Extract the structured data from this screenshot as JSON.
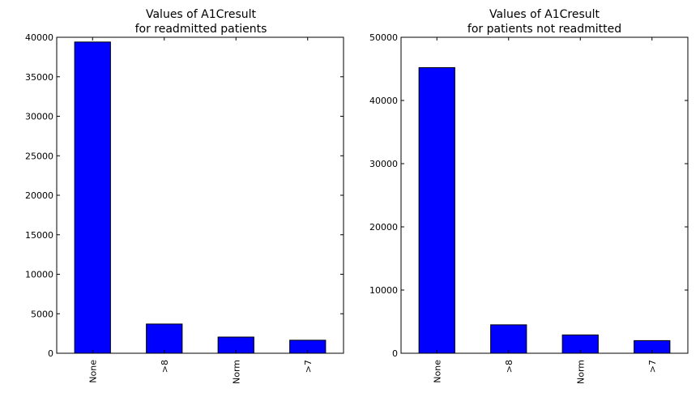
{
  "chart_data": [
    {
      "type": "bar",
      "title_lines": [
        "Values of A1Cresult",
        "for readmitted patients"
      ],
      "categories": [
        "None",
        ">8",
        "Norm",
        ">7"
      ],
      "values": [
        39400,
        3700,
        2050,
        1650
      ],
      "ylim": [
        0,
        40000
      ],
      "yticks": [
        0,
        5000,
        10000,
        15000,
        20000,
        25000,
        30000,
        35000,
        40000
      ],
      "bar_color": "#0000ff",
      "grid": false
    },
    {
      "type": "bar",
      "title_lines": [
        "Values of A1Cresult",
        "for patients not readmitted"
      ],
      "categories": [
        "None",
        ">8",
        "Norm",
        ">7"
      ],
      "values": [
        45200,
        4500,
        2900,
        2000
      ],
      "ylim": [
        0,
        50000
      ],
      "yticks": [
        0,
        10000,
        20000,
        30000,
        40000,
        50000
      ],
      "bar_color": "#0000ff",
      "grid": false
    }
  ]
}
